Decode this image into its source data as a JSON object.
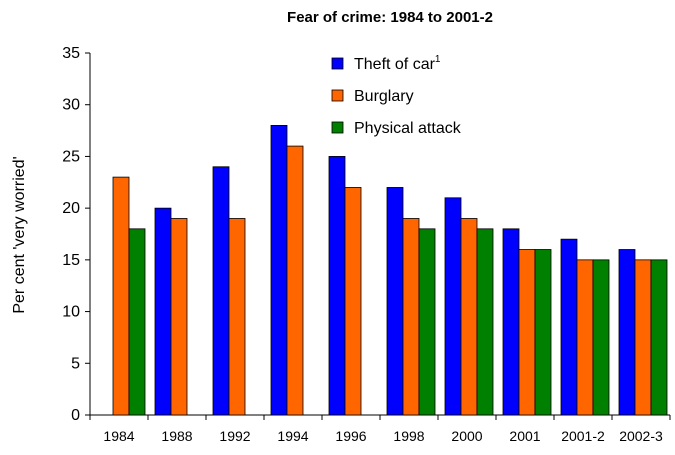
{
  "chart_data": {
    "type": "bar",
    "title": "Fear of crime: 1984 to 2001-2",
    "xlabel": "",
    "ylabel": "Per cent 'very worried'",
    "ylim": [
      0,
      35
    ],
    "yticks": [
      0,
      5,
      10,
      15,
      20,
      25,
      30,
      35
    ],
    "grid": false,
    "legend_position": "top-center",
    "categories": [
      "1984",
      "1988",
      "1992",
      "1994",
      "1996",
      "1998",
      "2000",
      "2001",
      "2001-2",
      "2002-3"
    ],
    "series": [
      {
        "name": "Theft of car",
        "superscript": "1",
        "color": "#0000ff",
        "values": [
          null,
          20,
          24,
          28,
          25,
          22,
          21,
          18,
          17,
          16
        ]
      },
      {
        "name": "Burglary",
        "color": "#ff6600",
        "values": [
          23,
          19,
          19,
          26,
          22,
          19,
          19,
          16,
          15,
          15
        ]
      },
      {
        "name": "Physical attack",
        "color": "#008000",
        "values": [
          18,
          null,
          null,
          null,
          null,
          18,
          18,
          16,
          15,
          15
        ]
      }
    ]
  }
}
